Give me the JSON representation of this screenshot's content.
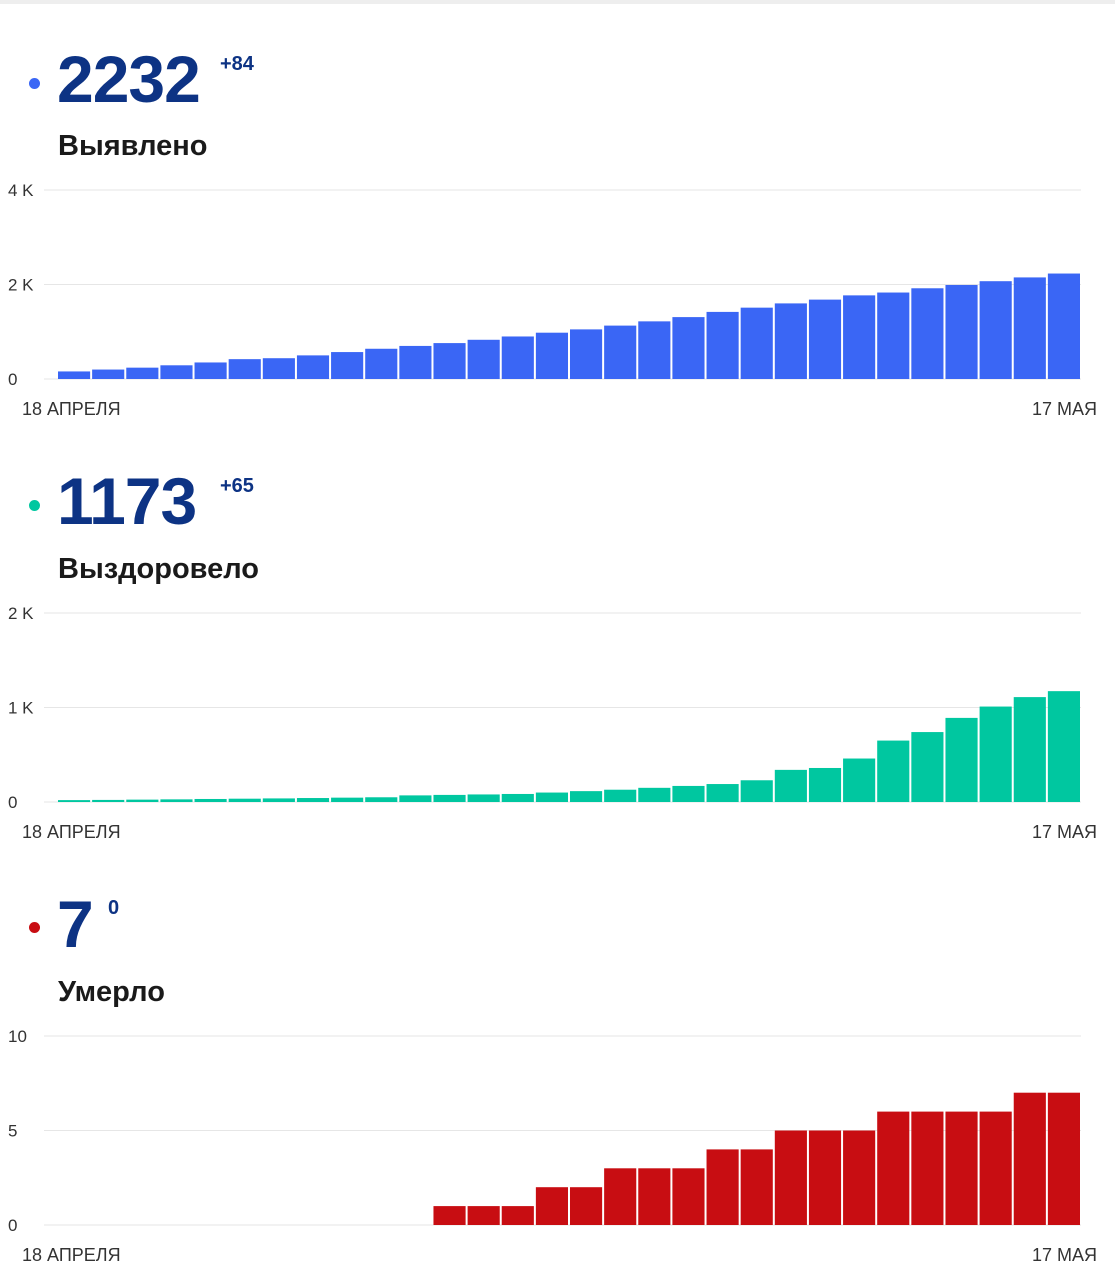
{
  "panels": [
    {
      "value": "2232",
      "delta": "+84",
      "label": "Выявлено",
      "color": "#3a66f5",
      "dot_color": "#3a66f5"
    },
    {
      "value": "1173",
      "delta": "+65",
      "label": "Выздоровело",
      "color": "#00c7a0",
      "dot_color": "#00c7a0"
    },
    {
      "value": "7",
      "delta": "0",
      "label": "Умерло",
      "color": "#c80d12",
      "dot_color": "#c80d12"
    }
  ],
  "chart_data": [
    {
      "type": "bar",
      "title": "Выявлено",
      "x_start_label": "18 АПРЕЛЯ",
      "x_end_label": "17 МАЯ",
      "ylim": [
        0,
        4000
      ],
      "yticks": [
        0,
        2000,
        4000
      ],
      "ytick_labels": [
        "0",
        "2 K",
        "4 K"
      ],
      "grid": true,
      "values": [
        160,
        200,
        240,
        290,
        350,
        420,
        440,
        500,
        570,
        640,
        700,
        760,
        830,
        900,
        980,
        1050,
        1130,
        1220,
        1310,
        1420,
        1510,
        1600,
        1680,
        1770,
        1830,
        1920,
        1990,
        2070,
        2150,
        2232
      ]
    },
    {
      "type": "bar",
      "title": "Выздоровело",
      "x_start_label": "18 АПРЕЛЯ",
      "x_end_label": "17 МАЯ",
      "ylim": [
        0,
        2000
      ],
      "yticks": [
        0,
        1000,
        2000
      ],
      "ytick_labels": [
        "0",
        "1 K",
        "2 K"
      ],
      "grid": true,
      "values": [
        20,
        22,
        25,
        28,
        32,
        35,
        38,
        42,
        46,
        50,
        70,
        75,
        80,
        85,
        100,
        115,
        130,
        150,
        170,
        190,
        230,
        340,
        360,
        460,
        650,
        740,
        890,
        1010,
        1110,
        1173
      ]
    },
    {
      "type": "bar",
      "title": "Умерло",
      "x_start_label": "18 АПРЕЛЯ",
      "x_end_label": "17 МАЯ",
      "ylim": [
        0,
        10
      ],
      "yticks": [
        0,
        5,
        10
      ],
      "ytick_labels": [
        "0",
        "5",
        "10"
      ],
      "grid": true,
      "values": [
        0,
        0,
        0,
        0,
        0,
        0,
        0,
        0,
        0,
        0,
        0,
        1,
        1,
        1,
        2,
        2,
        3,
        3,
        3,
        4,
        4,
        5,
        5,
        5,
        6,
        6,
        6,
        6,
        7,
        7
      ]
    }
  ]
}
